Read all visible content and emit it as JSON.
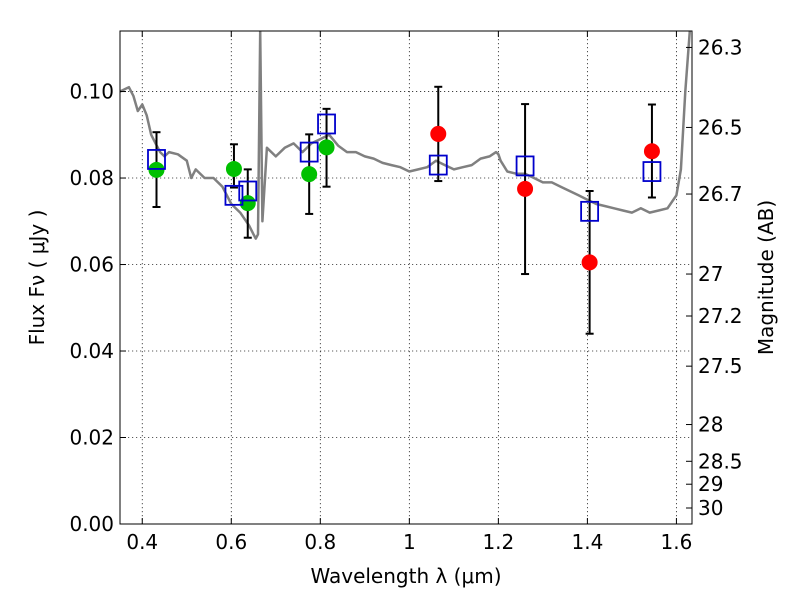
{
  "chart_data": {
    "type": "scatter",
    "xlabel": "Wavelength  λ (μm)",
    "ylabel": "Flux  Fν ( μJy )",
    "ylabel_right": "Magnitude (AB)",
    "xlim": [
      0.35,
      1.635
    ],
    "ylim": [
      0.0,
      0.114
    ],
    "grid": true,
    "x_ticks": [
      0.4,
      0.6,
      0.8,
      1.0,
      1.2,
      1.4,
      1.6
    ],
    "x_tick_labels": [
      "0.4",
      "0.6",
      "0.8",
      "1",
      "1.2",
      "1.4",
      "1.6"
    ],
    "y_ticks": [
      0.0,
      0.02,
      0.04,
      0.06,
      0.08,
      0.1
    ],
    "y_tick_labels": [
      "0.00",
      "0.02",
      "0.04",
      "0.06",
      "0.08",
      "0.10"
    ],
    "right_ticks": [
      {
        "label": "26.3",
        "flux": 0.1102
      },
      {
        "label": "26.5",
        "flux": 0.0917
      },
      {
        "label": "26.7",
        "flux": 0.0763
      },
      {
        "label": "27",
        "flux": 0.0578
      },
      {
        "label": "27.2",
        "flux": 0.0481
      },
      {
        "label": "27.5",
        "flux": 0.0365
      },
      {
        "label": "28",
        "flux": 0.023
      },
      {
        "label": "28.5",
        "flux": 0.0145
      },
      {
        "label": "29",
        "flux": 0.0092
      },
      {
        "label": "30",
        "flux": 0.0037
      }
    ],
    "series": [
      {
        "marker": "circle-green",
        "color": "#00c000",
        "points": [
          {
            "x": 0.432,
            "y": 0.0819,
            "yerr": [
              0.0733,
              0.0906
            ]
          },
          {
            "x": 0.606,
            "y": 0.0821,
            "yerr": [
              0.0778,
              0.0878
            ]
          },
          {
            "x": 0.637,
            "y": 0.0742,
            "yerr": [
              0.0662,
              0.082
            ]
          },
          {
            "x": 0.775,
            "y": 0.0809,
            "yerr": [
              0.0717,
              0.0901
            ]
          },
          {
            "x": 0.814,
            "y": 0.0871,
            "yerr": [
              0.078,
              0.096
            ]
          }
        ]
      },
      {
        "marker": "circle-red",
        "color": "#ff0000",
        "points": [
          {
            "x": 1.065,
            "y": 0.0902,
            "yerr": [
              0.0793,
              0.1011
            ]
          },
          {
            "x": 1.26,
            "y": 0.0775,
            "yerr": [
              0.0578,
              0.0971
            ]
          },
          {
            "x": 1.405,
            "y": 0.0605,
            "yerr": [
              0.044,
              0.077
            ]
          },
          {
            "x": 1.545,
            "y": 0.0862,
            "yerr": [
              0.0755,
              0.097
            ]
          }
        ]
      },
      {
        "marker": "square-blue",
        "color": "#0000cc",
        "points": [
          {
            "x": 0.432,
            "y": 0.0843
          },
          {
            "x": 0.606,
            "y": 0.076
          },
          {
            "x": 0.637,
            "y": 0.077
          },
          {
            "x": 0.775,
            "y": 0.086
          },
          {
            "x": 0.814,
            "y": 0.0925
          },
          {
            "x": 1.065,
            "y": 0.083
          },
          {
            "x": 1.26,
            "y": 0.0828
          },
          {
            "x": 1.405,
            "y": 0.0723
          },
          {
            "x": 1.545,
            "y": 0.0815
          }
        ]
      }
    ],
    "model_spectrum": {
      "color": "#808080",
      "x": [
        0.35,
        0.37,
        0.38,
        0.39,
        0.4,
        0.41,
        0.42,
        0.43,
        0.44,
        0.45,
        0.46,
        0.48,
        0.5,
        0.51,
        0.52,
        0.54,
        0.56,
        0.58,
        0.6,
        0.62,
        0.64,
        0.65,
        0.655,
        0.66,
        0.665,
        0.67,
        0.68,
        0.7,
        0.72,
        0.74,
        0.76,
        0.78,
        0.8,
        0.82,
        0.84,
        0.86,
        0.88,
        0.9,
        0.92,
        0.94,
        0.96,
        0.98,
        1.0,
        1.02,
        1.04,
        1.06,
        1.08,
        1.1,
        1.12,
        1.14,
        1.16,
        1.18,
        1.195,
        1.2,
        1.205,
        1.22,
        1.24,
        1.26,
        1.28,
        1.3,
        1.32,
        1.34,
        1.36,
        1.38,
        1.4,
        1.42,
        1.44,
        1.46,
        1.48,
        1.5,
        1.52,
        1.54,
        1.56,
        1.58,
        1.6,
        1.61,
        1.62,
        1.63
      ],
      "y": [
        0.1,
        0.101,
        0.099,
        0.0955,
        0.097,
        0.0945,
        0.09,
        0.088,
        0.086,
        0.085,
        0.086,
        0.0855,
        0.084,
        0.08,
        0.082,
        0.08,
        0.08,
        0.078,
        0.074,
        0.072,
        0.069,
        0.067,
        0.066,
        0.067,
        0.114,
        0.07,
        0.087,
        0.085,
        0.087,
        0.088,
        0.086,
        0.088,
        0.089,
        0.09,
        0.0875,
        0.086,
        0.086,
        0.085,
        0.0845,
        0.0835,
        0.083,
        0.0825,
        0.0815,
        0.082,
        0.0825,
        0.084,
        0.083,
        0.082,
        0.0825,
        0.083,
        0.0845,
        0.085,
        0.086,
        0.0855,
        0.084,
        0.0815,
        0.081,
        0.081,
        0.08,
        0.079,
        0.079,
        0.078,
        0.077,
        0.076,
        0.075,
        0.074,
        0.0735,
        0.073,
        0.0725,
        0.072,
        0.073,
        0.072,
        0.0725,
        0.073,
        0.076,
        0.082,
        0.1,
        0.114
      ]
    }
  }
}
